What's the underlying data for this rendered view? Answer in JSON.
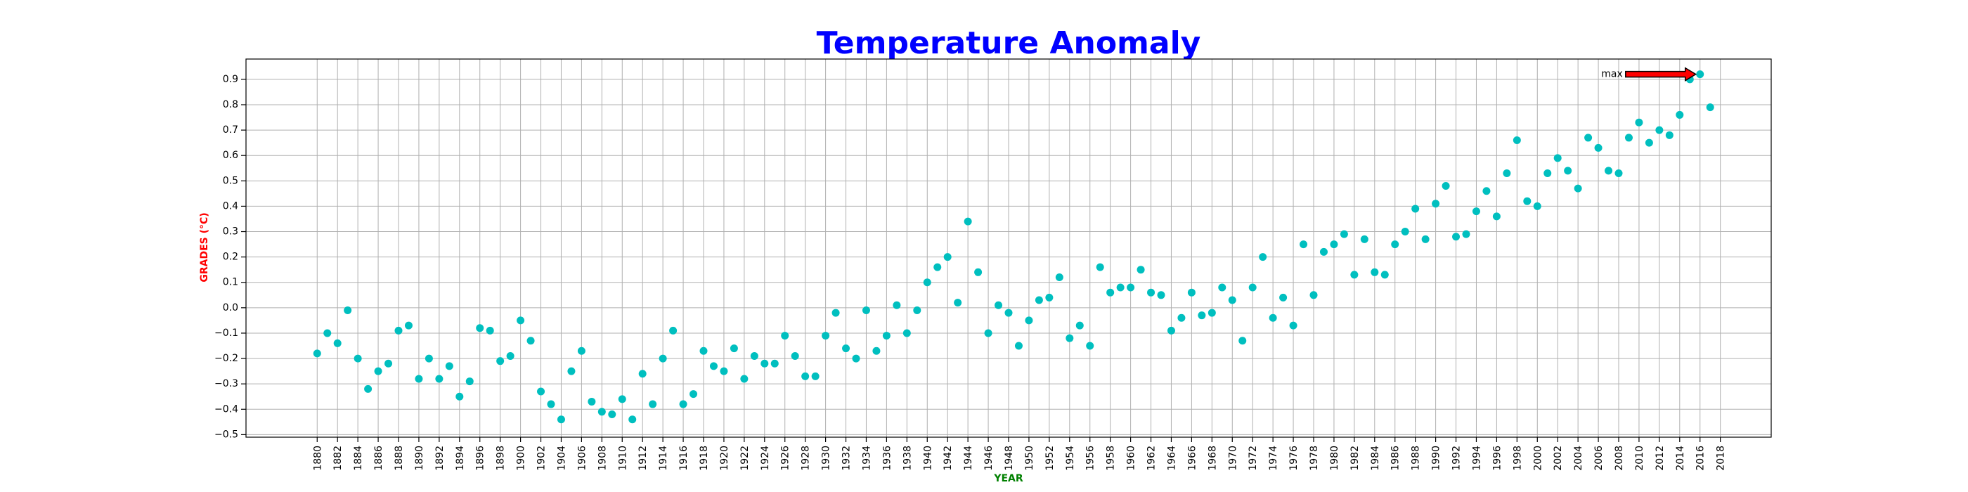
{
  "chart_data": {
    "type": "scatter",
    "title": "Temperature Anomaly",
    "xlabel": "YEAR",
    "ylabel": "GRADES (°C)",
    "title_color": "#0000ff",
    "xlabel_color": "#008000",
    "ylabel_color": "#ff0000",
    "marker_color": "#00bfbf",
    "grid": true,
    "xlim": [
      1873,
      2023
    ],
    "ylim": [
      -0.51,
      0.98
    ],
    "xticks": [
      1880,
      1882,
      1884,
      1886,
      1888,
      1890,
      1892,
      1894,
      1896,
      1898,
      1900,
      1902,
      1904,
      1906,
      1908,
      1910,
      1912,
      1914,
      1916,
      1918,
      1920,
      1922,
      1924,
      1926,
      1928,
      1930,
      1932,
      1934,
      1936,
      1938,
      1940,
      1942,
      1944,
      1946,
      1948,
      1950,
      1952,
      1954,
      1956,
      1958,
      1960,
      1962,
      1964,
      1966,
      1968,
      1970,
      1972,
      1974,
      1976,
      1978,
      1980,
      1982,
      1984,
      1986,
      1988,
      1990,
      1992,
      1994,
      1996,
      1998,
      2000,
      2002,
      2004,
      2006,
      2008,
      2010,
      2012,
      2014,
      2016,
      2018
    ],
    "yticks": [
      "-0.5",
      "-0.4",
      "-0.3",
      "-0.2",
      "-0.1",
      "0.0",
      "0.1",
      "0.2",
      "0.3",
      "0.4",
      "0.5",
      "0.6",
      "0.7",
      "0.8",
      "0.9"
    ],
    "x": [
      1880,
      1881,
      1882,
      1883,
      1884,
      1885,
      1886,
      1887,
      1888,
      1889,
      1890,
      1891,
      1892,
      1893,
      1894,
      1895,
      1896,
      1897,
      1898,
      1899,
      1900,
      1901,
      1902,
      1903,
      1904,
      1905,
      1906,
      1907,
      1908,
      1909,
      1910,
      1911,
      1912,
      1913,
      1914,
      1915,
      1916,
      1917,
      1918,
      1919,
      1920,
      1921,
      1922,
      1923,
      1924,
      1925,
      1926,
      1927,
      1928,
      1929,
      1930,
      1931,
      1932,
      1933,
      1934,
      1935,
      1936,
      1937,
      1938,
      1939,
      1940,
      1941,
      1942,
      1943,
      1944,
      1945,
      1946,
      1947,
      1948,
      1949,
      1950,
      1951,
      1952,
      1953,
      1954,
      1955,
      1956,
      1957,
      1958,
      1959,
      1960,
      1961,
      1962,
      1963,
      1964,
      1965,
      1966,
      1967,
      1968,
      1969,
      1970,
      1971,
      1972,
      1973,
      1974,
      1975,
      1976,
      1977,
      1978,
      1979,
      1980,
      1981,
      1982,
      1983,
      1984,
      1985,
      1986,
      1987,
      1988,
      1989,
      1990,
      1991,
      1992,
      1993,
      1994,
      1995,
      1996,
      1997,
      1998,
      1999,
      2000,
      2001,
      2002,
      2003,
      2004,
      2005,
      2006,
      2007,
      2008,
      2009,
      2010,
      2011,
      2012,
      2013,
      2014,
      2015,
      2016,
      2017
    ],
    "y": [
      -0.18,
      -0.1,
      -0.14,
      -0.01,
      -0.2,
      -0.32,
      -0.25,
      -0.22,
      -0.09,
      -0.07,
      -0.28,
      -0.2,
      -0.28,
      -0.23,
      -0.35,
      -0.29,
      -0.08,
      -0.09,
      -0.21,
      -0.19,
      -0.05,
      -0.13,
      -0.33,
      -0.38,
      -0.44,
      -0.25,
      -0.17,
      -0.37,
      -0.41,
      -0.42,
      -0.36,
      -0.44,
      -0.26,
      -0.38,
      -0.2,
      -0.09,
      -0.38,
      -0.34,
      -0.17,
      -0.23,
      -0.25,
      -0.16,
      -0.28,
      -0.19,
      -0.22,
      -0.22,
      -0.11,
      -0.19,
      -0.27,
      -0.27,
      -0.11,
      -0.02,
      -0.16,
      -0.2,
      -0.01,
      -0.17,
      -0.11,
      0.01,
      -0.1,
      -0.01,
      0.1,
      0.16,
      0.2,
      0.02,
      0.34,
      0.14,
      -0.1,
      0.01,
      -0.02,
      -0.15,
      -0.05,
      0.03,
      0.04,
      0.12,
      -0.12,
      -0.07,
      -0.15,
      0.16,
      0.06,
      0.08,
      0.08,
      0.15,
      0.06,
      0.05,
      -0.09,
      -0.04,
      0.06,
      -0.03,
      -0.02,
      0.08,
      0.03,
      -0.13,
      0.08,
      0.2,
      -0.04,
      0.04,
      -0.07,
      0.25,
      0.05,
      0.22,
      0.25,
      0.29,
      0.13,
      0.27,
      0.14,
      0.13,
      0.25,
      0.3,
      0.39,
      0.27,
      0.41,
      0.48,
      0.28,
      0.29,
      0.38,
      0.46,
      0.36,
      0.53,
      0.66,
      0.42,
      0.4,
      0.53,
      0.59,
      0.54,
      0.47,
      0.67,
      0.63,
      0.54,
      0.53,
      0.67,
      0.73,
      0.65,
      0.7,
      0.68,
      0.76,
      0.9,
      0.92,
      0.79
    ],
    "annotation": {
      "text": "max",
      "point_x": 2016,
      "point_y": 0.92,
      "text_x": 2008.4,
      "text_y": 0.92,
      "arrow_color": "#ff0000"
    }
  }
}
